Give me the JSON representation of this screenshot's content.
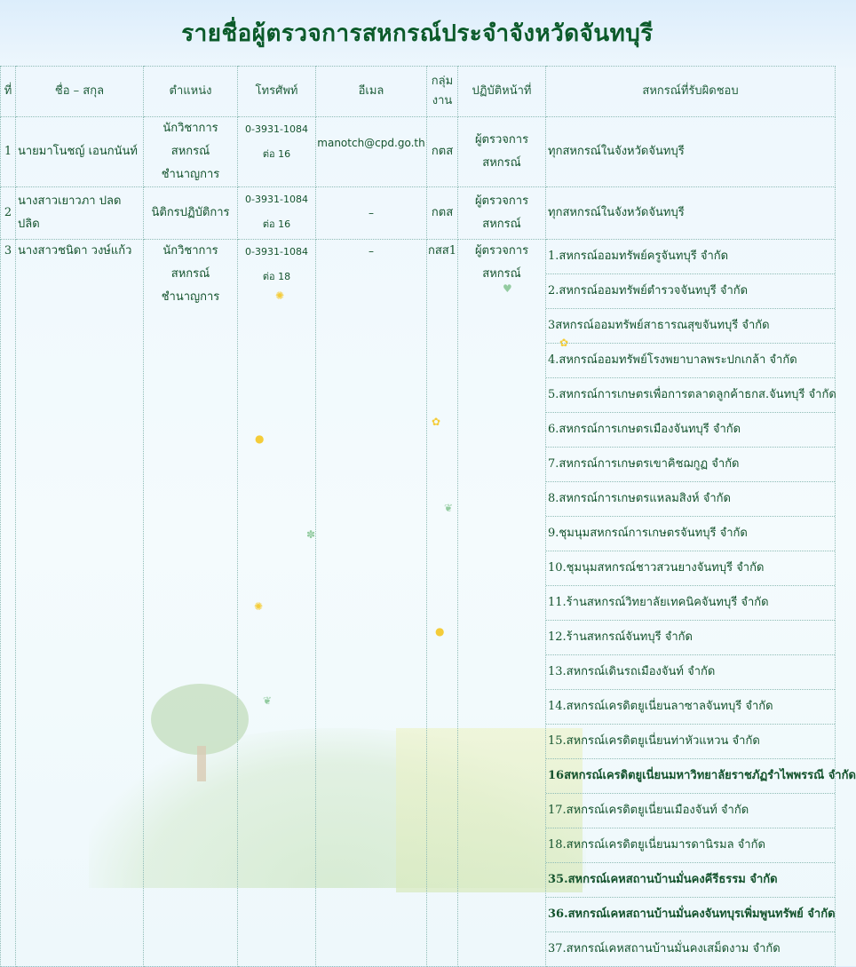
{
  "title": "รายชื่อผู้ตรวจการสหกรณ์ประจำจังหวัดจันทบุรี",
  "columns": [
    "ที่",
    "ชื่อ – สกุล",
    "ตำแหน่ง",
    "โทรศัพท์",
    "อีเมล",
    "กลุ่มงาน",
    "ปฏิบัติหน้าที่",
    "สหกรณ์ที่รับผิดชอบ"
  ],
  "rows": [
    {
      "no": "1",
      "name": "นายมาโนชญ์ เอนกนันท์",
      "position": [
        "นักวิชาการสหกรณ์",
        "ชำนาญการ"
      ],
      "phone": [
        "0-3931-1084",
        "ต่อ 16"
      ],
      "email": "manotch@cpd.go.th",
      "group": "กตส",
      "duty": "ผู้ตรวจการสหกรณ์",
      "coops": [
        "ทุกสหกรณ์ในจังหวัดจันทบุรี"
      ]
    },
    {
      "no": "2",
      "name": "นางสาวเยาวภา ปลดปลิด",
      "position": [
        "นิติกรปฏิบัติการ"
      ],
      "phone": [
        "0-3931-1084",
        "ต่อ 16"
      ],
      "email": "–",
      "group": "กตส",
      "duty": "ผู้ตรวจการสหกรณ์",
      "coops": [
        "ทุกสหกรณ์ในจังหวัดจันทบุรี"
      ]
    },
    {
      "no": "3",
      "name": "นางสาวชนิดา วงษ์แก้ว",
      "position": [
        "นักวิชาการสหกรณ์",
        "ชำนาญการ"
      ],
      "phone": [
        "0-3931-1084",
        "ต่อ 18"
      ],
      "email": "–",
      "group": "กสส1",
      "duty": "ผู้ตรวจการสหกรณ์",
      "coops": [
        "1.สหกรณ์ออมทรัพย์ครูจันทบุรี จำกัด",
        "2.สหกรณ์ออมทรัพย์ตำรวจจันทบุรี จำกัด",
        "3สหกรณ์ออมทรัพย์สาธารณสุขจันทบุรี จำกัด",
        "4.สหกรณ์ออมทรัพย์โรงพยาบาลพระปกเกล้า จำกัด",
        "5.สหกรณ์การเกษตรเพื่อการตลาดลูกค้าธกส.จันทบุรี จำกัด",
        "6.สหกรณ์การเกษตรเมืองจันทบุรี จำกัด",
        "7.สหกรณ์การเกษตรเขาคิชฌกูฏ จำกัด",
        "8.สหกรณ์การเกษตรแหลมสิงห์ จำกัด",
        "9.ชุมนุมสหกรณ์การเกษตรจันทบุรี จำกัด",
        "10.ชุมนุมสหกรณ์ชาวสวนยางจันทบุรี จำกัด",
        "11.ร้านสหกรณ์วิทยาลัยเทคนิคจันทบุรี จำกัด",
        "12.ร้านสหกรณ์จันทบุรี จำกัด",
        "13.สหกรณ์เดินรถเมืองจันท์ จำกัด",
        "14.สหกรณ์เครดิตยูเนี่ยนลาซาลจันทบุรี จำกัด",
        "15.สหกรณ์เครดิตยูเนี่ยนท่าหัวแหวน จำกัด",
        "16สหกรณ์เครดิตยูเนี่ยนมหาวิทยาลัยราชภัฏรำไพพรรณี จำกัด",
        "17.สหกรณ์เครดิตยูเนี่ยนเมืองจันท์ จำกัด",
        "18.สหกรณ์เครดิตยูเนี่ยนมารดานิรมล จำกัด",
        "35.สหกรณ์เคหสถานบ้านมั่นคงคีรีธรรม จำกัด",
        "36.สหกรณ์เคหสถานบ้านมั่นคงจันทบุรเพิ่มพูนทรัพย์ จำกัด",
        "37.สหกรณ์เคหสถานบ้านมั่นคงเสม็ดงาม จำกัด"
      ]
    }
  ],
  "decor_icons": [
    "tree-illustration",
    "hill-illustration",
    "flower-icon",
    "leaf-icon"
  ]
}
